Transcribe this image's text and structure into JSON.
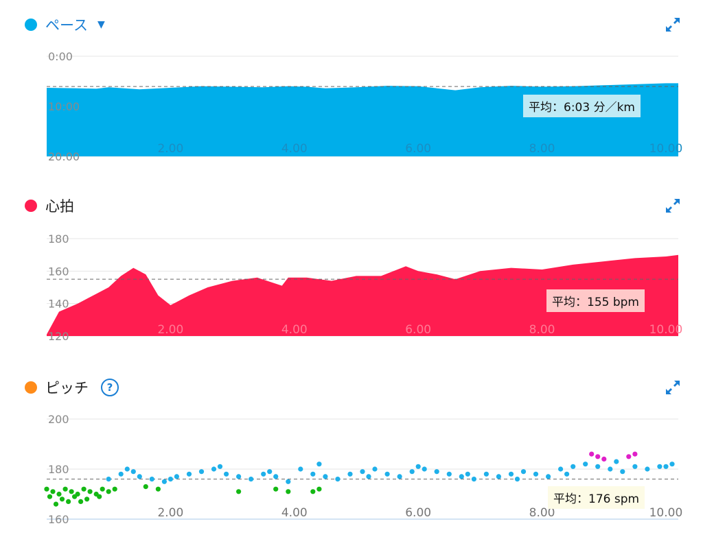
{
  "colors": {
    "pace": "#00aeea",
    "heart": "#ff1d50",
    "cadence_dot": "#ff8c1a",
    "link": "#1a7fd4",
    "green": "#14b814",
    "blue_pt": "#1fb0ea",
    "magenta": "#e020c8"
  },
  "pace": {
    "title": "ペース",
    "caret": "▼",
    "expand_icon": "expand-arrows-icon",
    "avg_label": "平均：6:03 分／km",
    "y_ticks": [
      "0:00",
      "10:00",
      "20:00"
    ],
    "x_ticks": [
      "2.00",
      "4.00",
      "6.00",
      "8.00",
      "10.00"
    ]
  },
  "heart": {
    "title": "心拍",
    "expand_icon": "expand-arrows-icon",
    "avg_label": "平均：155 bpm",
    "y_ticks": [
      "180",
      "160",
      "140",
      "120"
    ],
    "x_ticks": [
      "2.00",
      "4.00",
      "6.00",
      "8.00",
      "10.00"
    ]
  },
  "cadence": {
    "title": "ピッチ",
    "help_icon": "question-circle-icon",
    "expand_icon": "expand-arrows-icon",
    "avg_label": "平均：176 spm",
    "y_ticks": [
      "200",
      "180",
      "160"
    ],
    "x_ticks": [
      "2.00",
      "4.00",
      "6.00",
      "8.00",
      "10.00"
    ]
  },
  "chart_data": [
    {
      "type": "area",
      "xlim": [
        0,
        10.2
      ],
      "ylim_min_per_km": [
        0,
        20
      ],
      "y_inverted": true,
      "average": 6.05,
      "x": [
        0,
        0.5,
        0.8,
        1.0,
        1.5,
        2.0,
        2.5,
        3.0,
        3.5,
        3.9,
        4.2,
        4.5,
        5.0,
        5.5,
        6.0,
        6.3,
        6.6,
        7.0,
        7.5,
        8.0,
        8.5,
        9.0,
        9.5,
        10.0,
        10.2
      ],
      "values": [
        6.3,
        6.4,
        6.5,
        6.2,
        6.6,
        6.3,
        6.0,
        6.1,
        6.2,
        6.0,
        6.1,
        6.4,
        6.2,
        5.9,
        6.0,
        6.4,
        6.8,
        6.2,
        5.9,
        6.1,
        6.0,
        5.8,
        5.6,
        5.4,
        5.4
      ]
    },
    {
      "type": "area",
      "xlim": [
        0,
        10.2
      ],
      "ylim": [
        120,
        180
      ],
      "average": 155,
      "x": [
        0,
        0.2,
        0.5,
        0.8,
        1.0,
        1.2,
        1.4,
        1.6,
        1.8,
        2.0,
        2.3,
        2.6,
        3.0,
        3.4,
        3.8,
        3.9,
        4.2,
        4.6,
        5.0,
        5.4,
        5.8,
        6.0,
        6.3,
        6.6,
        7.0,
        7.5,
        8.0,
        8.5,
        9.0,
        9.5,
        10.0,
        10.2
      ],
      "values": [
        121,
        135,
        140,
        146,
        150,
        157,
        162,
        158,
        145,
        139,
        145,
        150,
        154,
        156,
        151,
        156,
        156,
        154,
        157,
        157,
        163,
        160,
        158,
        155,
        160,
        162,
        161,
        164,
        166,
        168,
        169,
        170
      ]
    },
    {
      "type": "scatter",
      "xlim": [
        0,
        10.2
      ],
      "ylim": [
        160,
        200
      ],
      "average": 176,
      "series": [
        {
          "color_key": "green",
          "x": [
            0.0,
            0.1,
            0.2,
            0.3,
            0.4,
            0.5,
            0.6,
            0.7,
            0.8,
            0.9,
            1.0,
            0.05,
            0.25,
            0.45,
            0.65,
            0.85,
            0.15,
            0.35,
            0.55,
            1.1,
            1.6,
            1.8,
            3.1,
            3.7,
            3.9,
            4.3,
            4.4
          ],
          "values": [
            172,
            171,
            170,
            172,
            171,
            170,
            172,
            171,
            170,
            172,
            171,
            169,
            168,
            169,
            168,
            169,
            166,
            167,
            167,
            172,
            173,
            172,
            171,
            172,
            171,
            171,
            172
          ]
        },
        {
          "color_key": "blue_pt",
          "x": [
            1.0,
            1.2,
            1.4,
            1.5,
            1.7,
            1.9,
            2.1,
            2.3,
            2.5,
            2.7,
            2.9,
            3.1,
            3.3,
            3.5,
            3.7,
            3.9,
            4.1,
            4.3,
            4.5,
            4.7,
            4.9,
            5.1,
            5.3,
            5.5,
            5.7,
            5.9,
            6.1,
            6.3,
            6.5,
            6.7,
            6.9,
            7.1,
            7.3,
            7.5,
            7.7,
            7.9,
            8.1,
            8.3,
            8.5,
            8.7,
            8.9,
            9.1,
            9.3,
            9.5,
            9.7,
            9.9,
            10.1,
            1.3,
            2.0,
            2.8,
            3.6,
            4.4,
            5.2,
            6.0,
            6.8,
            7.6,
            8.4,
            9.2,
            10.0
          ],
          "values": [
            176,
            178,
            179,
            177,
            176,
            175,
            177,
            178,
            179,
            180,
            178,
            177,
            176,
            178,
            177,
            175,
            180,
            178,
            177,
            176,
            178,
            179,
            180,
            178,
            177,
            179,
            180,
            179,
            178,
            177,
            176,
            178,
            177,
            178,
            179,
            178,
            177,
            180,
            181,
            182,
            181,
            180,
            179,
            181,
            180,
            181,
            182,
            180,
            176,
            181,
            179,
            182,
            177,
            181,
            178,
            176,
            178,
            183,
            181
          ]
        },
        {
          "color_key": "magenta",
          "x": [
            8.8,
            8.9,
            9.0,
            9.4,
            9.5
          ],
          "values": [
            186,
            185,
            184,
            185,
            186
          ]
        }
      ]
    }
  ]
}
